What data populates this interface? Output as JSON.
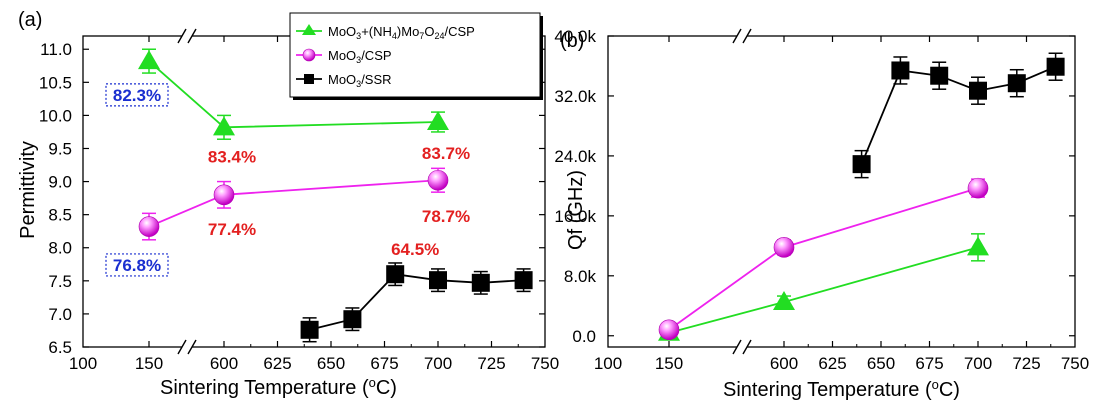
{
  "colors": {
    "green": "#22dd22",
    "magenta": "#ee22ee",
    "black": "#000000",
    "pct_red": "#e32020",
    "pct_blue": "#1a2fd0"
  },
  "chart_data": [
    {
      "panel": "(a)",
      "type": "line",
      "ylabel": "Permittivity",
      "xlabel": "Sintering Temperature (",
      "xlabel_unit": "o",
      "xlabel_end": "C)",
      "x_ticks": [
        "100",
        "150",
        "600",
        "625",
        "650",
        "675",
        "700",
        "725",
        "750"
      ],
      "y_ticks": [
        "6.5",
        "7.0",
        "7.5",
        "8.0",
        "8.5",
        "9.0",
        "9.5",
        "10.0",
        "10.5",
        "11.0"
      ],
      "ylim": [
        6.5,
        11.2
      ],
      "axis_break": "//",
      "legend": [
        {
          "series": 0,
          "parts": [
            [
              "MoO",
              ""
            ],
            [
              "3",
              "sub"
            ],
            [
              "+(NH",
              ""
            ],
            [
              "4",
              "sub"
            ],
            [
              ")Mo",
              ""
            ],
            [
              "7",
              "sub"
            ],
            [
              "O",
              ""
            ],
            [
              "24",
              "sub"
            ],
            [
              "/CSP",
              ""
            ]
          ]
        },
        {
          "series": 1,
          "parts": [
            [
              "MoO",
              ""
            ],
            [
              "3",
              "sub"
            ],
            [
              "/CSP",
              ""
            ]
          ]
        },
        {
          "series": 2,
          "parts": [
            [
              "MoO",
              ""
            ],
            [
              "3",
              "sub"
            ],
            [
              "/SSR",
              ""
            ]
          ]
        }
      ],
      "series": [
        {
          "name": "MoO3+(NH4)Mo7O24/CSP",
          "marker": "triangle",
          "color": "green",
          "x": [
            150,
            600,
            700
          ],
          "y": [
            10.82,
            9.82,
            9.9
          ],
          "err": [
            0.18,
            0.18,
            0.15
          ]
        },
        {
          "name": "MoO3/CSP",
          "marker": "sphere",
          "color": "magenta",
          "x": [
            150,
            600,
            700
          ],
          "y": [
            8.32,
            8.8,
            9.02
          ],
          "err": [
            0.2,
            0.2,
            0.18
          ]
        },
        {
          "name": "MoO3/SSR",
          "marker": "square",
          "color": "black",
          "x": [
            640,
            660,
            680,
            700,
            720,
            740
          ],
          "y": [
            6.76,
            6.92,
            7.6,
            7.51,
            7.47,
            7.51
          ],
          "err": [
            0.18,
            0.17,
            0.17,
            0.17,
            0.17,
            0.17
          ]
        }
      ],
      "annotations": [
        {
          "text": "82.3%",
          "style": "boxed-blue",
          "x": 150,
          "y": 10.25
        },
        {
          "text": "83.4%",
          "style": "red",
          "x": 600,
          "y": 9.35
        },
        {
          "text": "83.7%",
          "style": "red",
          "x": 700,
          "y": 9.4
        },
        {
          "text": "77.4%",
          "style": "red",
          "x": 600,
          "y": 8.25
        },
        {
          "text": "78.7%",
          "style": "red",
          "x": 700,
          "y": 8.45
        },
        {
          "text": "76.8%",
          "style": "boxed-blue",
          "x": 150,
          "y": 7.68
        },
        {
          "text": "64.5%",
          "style": "red",
          "x": 680,
          "y": 7.95
        }
      ]
    },
    {
      "panel": "(b)",
      "type": "line",
      "ylabel": "Qf (GHz)",
      "xlabel": "Sintering Temperature (",
      "xlabel_unit": "o",
      "xlabel_end": "C)",
      "x_ticks": [
        "100",
        "150",
        "600",
        "625",
        "650",
        "675",
        "700",
        "725",
        "750"
      ],
      "y_ticks": [
        "0.0",
        "8.0k",
        "16.0k",
        "24.0k",
        "32.0k",
        "40.0k"
      ],
      "ylim": [
        -1500,
        40000
      ],
      "axis_break": "//",
      "series": [
        {
          "name": "MoO3+(NH4)Mo7O24/CSP",
          "marker": "triangle",
          "color": "green",
          "x": [
            150,
            600,
            700
          ],
          "y": [
            400,
            4500,
            11800
          ],
          "err": [
            300,
            800,
            1800
          ]
        },
        {
          "name": "MoO3/CSP",
          "marker": "sphere",
          "color": "magenta",
          "x": [
            150,
            600,
            700
          ],
          "y": [
            800,
            11800,
            19700
          ],
          "err": [
            300,
            1000,
            1200
          ]
        },
        {
          "name": "MoO3/SSR",
          "marker": "square",
          "color": "black",
          "x": [
            640,
            660,
            680,
            700,
            720,
            740
          ],
          "y": [
            22900,
            35400,
            34700,
            32700,
            33700,
            35900
          ],
          "err": [
            1800,
            1800,
            1800,
            1800,
            1800,
            1800
          ]
        }
      ]
    }
  ]
}
